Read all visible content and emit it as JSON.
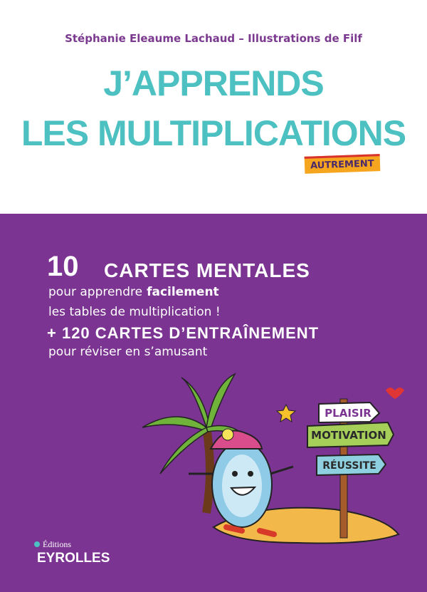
{
  "header": {
    "authors": "Stéphanie Eleaume Lachaud – Illustrations de Filf",
    "title": [
      "J’APPRENDS",
      "LES MULTIPLICATIONS"
    ],
    "badge": "AUTREMENT"
  },
  "body": {
    "count": "10",
    "headline": "CARTES MENTALES",
    "line1": [
      "pour apprendre",
      "facilement"
    ],
    "line2": "les tables de multiplication !",
    "extra": "+ 120 CARTES D’ENTRAÎNEMENT",
    "line3": "pour réviser en s’amusant"
  },
  "signs": [
    "PLAISIR",
    "MOTIVATION",
    "RÉUSSITE"
  ],
  "publisher": {
    "prefix": "Éditions",
    "name": "EYROLLES"
  }
}
